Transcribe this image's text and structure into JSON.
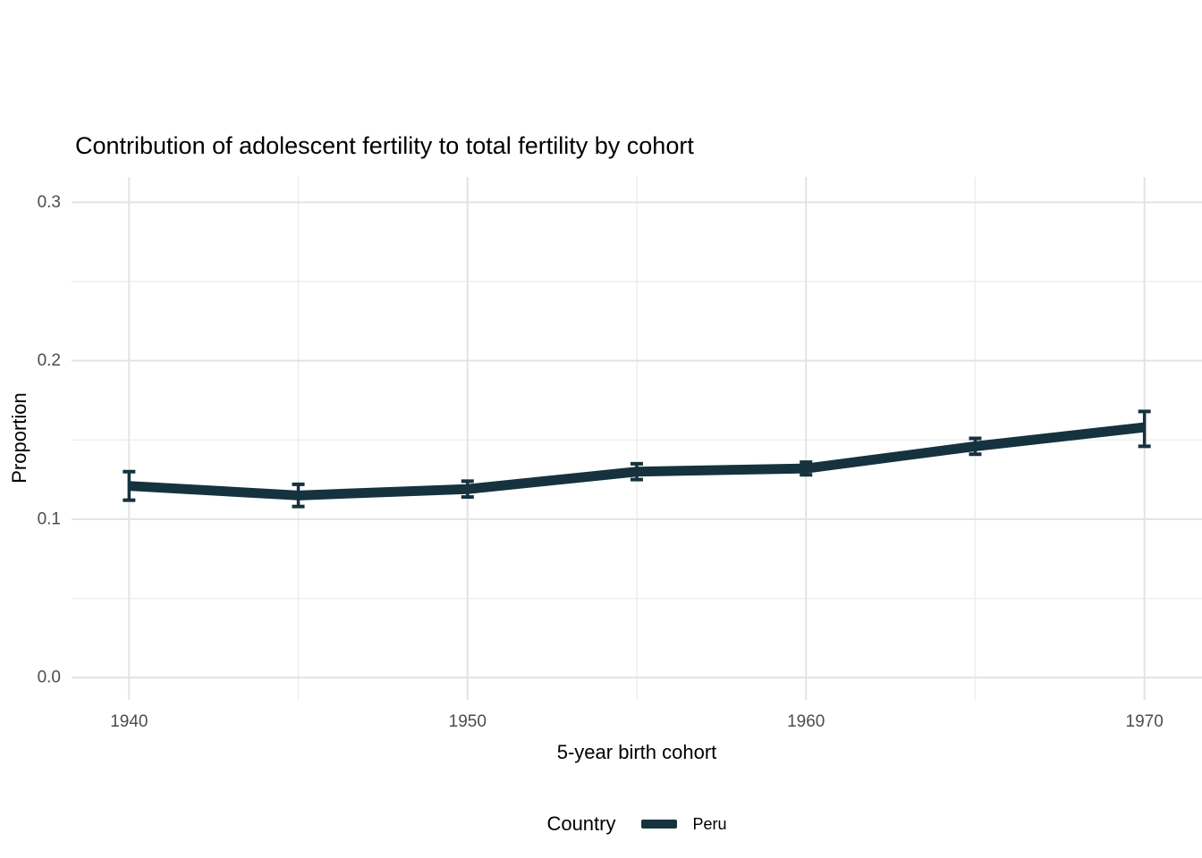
{
  "chart": {
    "title": "Contribution of adolescent fertility to total fertility by cohort",
    "x_axis_label": "5-year birth cohort",
    "y_axis_label": "Proportion"
  },
  "legend": {
    "title": "Country",
    "series_label": "Peru",
    "swatch_color": "#16323f"
  },
  "colors": {
    "series_line": "#16323f",
    "major_grid": "#e3e3e3",
    "minor_grid": "#ededed",
    "tick_label": "#4d4d4d",
    "background": "#ffffff"
  },
  "chart_data": {
    "type": "line",
    "title": "Contribution of adolescent fertility to total fertility by cohort",
    "xlabel": "5-year birth cohort",
    "ylabel": "Proportion",
    "grid": true,
    "legend_position": "bottom",
    "legend_title": "Country",
    "xlim": [
      1938.3,
      1971.7
    ],
    "ylim": [
      -0.014,
      0.316
    ],
    "x_ticks": [
      {
        "v": 1940,
        "label": "1940"
      },
      {
        "v": 1950,
        "label": "1950"
      },
      {
        "v": 1960,
        "label": "1960"
      },
      {
        "v": 1970,
        "label": "1970"
      }
    ],
    "x_minor": [
      1945,
      1955,
      1965
    ],
    "y_ticks": [
      {
        "v": 0.0,
        "label": "0.0"
      },
      {
        "v": 0.1,
        "label": "0.1"
      },
      {
        "v": 0.2,
        "label": "0.2"
      },
      {
        "v": 0.3,
        "label": "0.3"
      }
    ],
    "y_minor": [
      0.05,
      0.15,
      0.25
    ],
    "series": [
      {
        "name": "Peru",
        "color": "#16323f",
        "x": [
          1940,
          1945,
          1950,
          1955,
          1960,
          1965,
          1970
        ],
        "y": [
          0.121,
          0.115,
          0.119,
          0.13,
          0.132,
          0.146,
          0.158
        ],
        "ci_low": [
          0.112,
          0.108,
          0.114,
          0.125,
          0.128,
          0.141,
          0.146
        ],
        "ci_high": [
          0.13,
          0.122,
          0.124,
          0.135,
          0.136,
          0.151,
          0.168
        ]
      }
    ]
  }
}
